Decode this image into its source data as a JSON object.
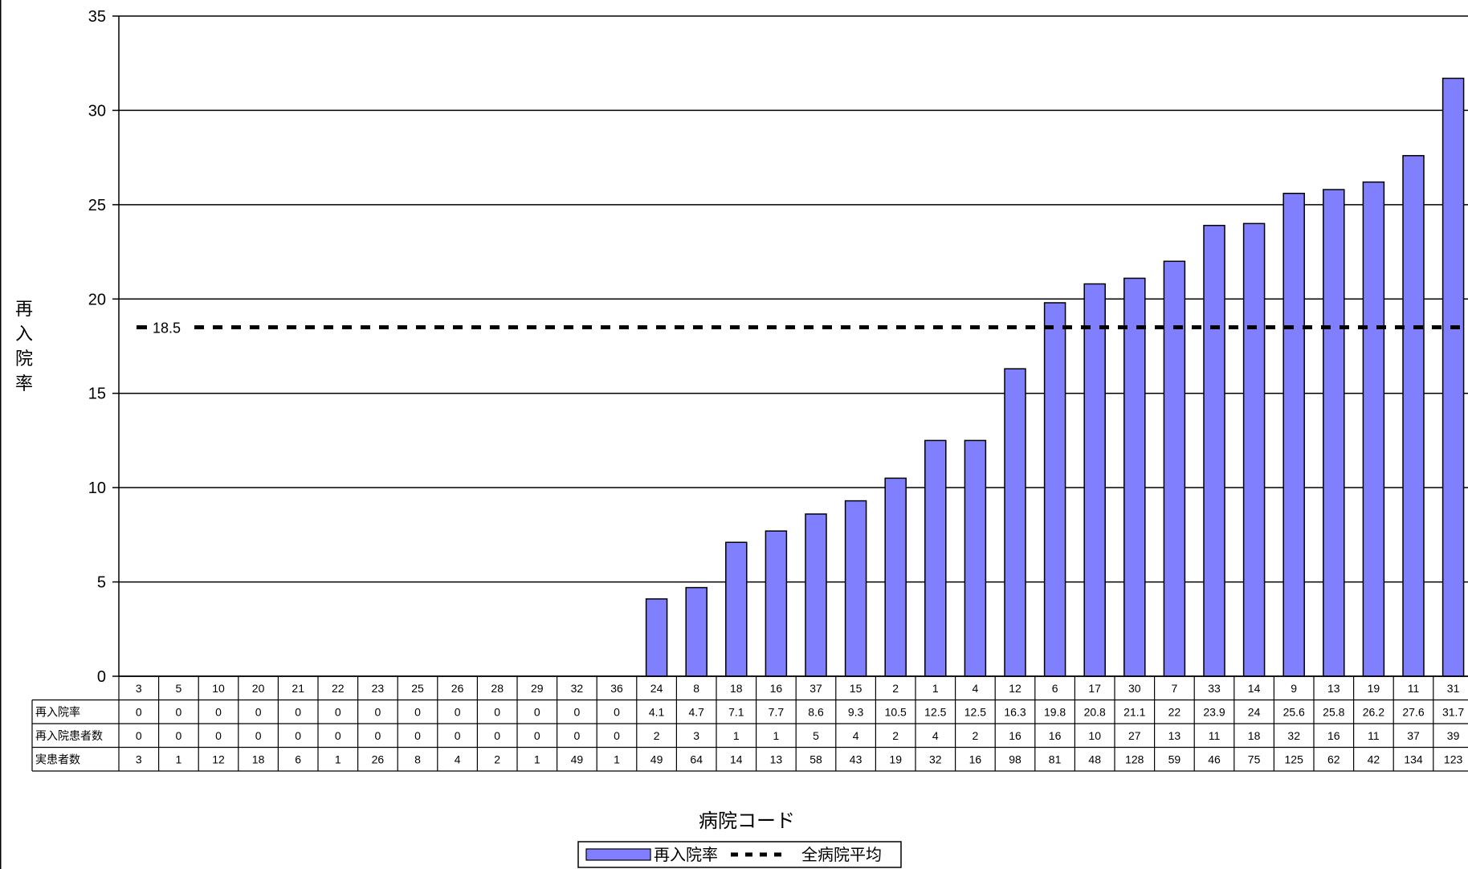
{
  "chart_data": {
    "type": "bar",
    "xlabel": "病院コード",
    "ylabel": "再入院率",
    "ylim": [
      0,
      35
    ],
    "yticks": [
      0,
      5,
      10,
      15,
      20,
      25,
      30,
      35
    ],
    "grid": true,
    "categories": [
      "3",
      "5",
      "10",
      "20",
      "21",
      "22",
      "23",
      "25",
      "26",
      "28",
      "29",
      "32",
      "36",
      "24",
      "8",
      "18",
      "16",
      "37",
      "15",
      "2",
      "1",
      "4",
      "12",
      "6",
      "17",
      "30",
      "7",
      "33",
      "14",
      "9",
      "13",
      "19",
      "11",
      "31"
    ],
    "series": [
      {
        "name": "再入院率",
        "type": "bar",
        "color": "#8080FF",
        "values": [
          0,
          0,
          0,
          0,
          0,
          0,
          0,
          0,
          0,
          0,
          0,
          0,
          0,
          4.1,
          4.7,
          7.1,
          7.7,
          8.6,
          9.3,
          10.5,
          12.5,
          12.5,
          16.3,
          19.8,
          20.8,
          21.1,
          22,
          23.9,
          24,
          25.6,
          25.8,
          26.2,
          27.6,
          31.7
        ]
      },
      {
        "name": "全病院平均",
        "type": "line",
        "style": "dashed",
        "color": "#000000",
        "value": 18.5
      }
    ],
    "average_label": "18.5",
    "table": {
      "rows": [
        {
          "label": "再入院率",
          "values": [
            "0",
            "0",
            "0",
            "0",
            "0",
            "0",
            "0",
            "0",
            "0",
            "0",
            "0",
            "0",
            "0",
            "4.1",
            "4.7",
            "7.1",
            "7.7",
            "8.6",
            "9.3",
            "10.5",
            "12.5",
            "12.5",
            "16.3",
            "19.8",
            "20.8",
            "21.1",
            "22",
            "23.9",
            "24",
            "25.6",
            "25.8",
            "26.2",
            "27.6",
            "31.7"
          ]
        },
        {
          "label": "再入院患者数",
          "values": [
            "0",
            "0",
            "0",
            "0",
            "0",
            "0",
            "0",
            "0",
            "0",
            "0",
            "0",
            "0",
            "0",
            "2",
            "3",
            "1",
            "1",
            "5",
            "4",
            "2",
            "4",
            "2",
            "16",
            "16",
            "10",
            "27",
            "13",
            "11",
            "18",
            "32",
            "16",
            "11",
            "37",
            "39"
          ]
        },
        {
          "label": "実患者数",
          "values": [
            "3",
            "1",
            "12",
            "18",
            "6",
            "1",
            "26",
            "8",
            "4",
            "2",
            "1",
            "49",
            "1",
            "49",
            "64",
            "14",
            "13",
            "58",
            "43",
            "19",
            "32",
            "16",
            "98",
            "81",
            "48",
            "128",
            "59",
            "46",
            "75",
            "125",
            "62",
            "42",
            "134",
            "123"
          ]
        }
      ]
    },
    "legend": {
      "placement": "bottom-center",
      "items": [
        {
          "label": "再入院率",
          "kind": "bar",
          "color": "#8080FF"
        },
        {
          "label": "全病院平均",
          "kind": "dashed-line",
          "color": "#000000"
        }
      ]
    }
  }
}
